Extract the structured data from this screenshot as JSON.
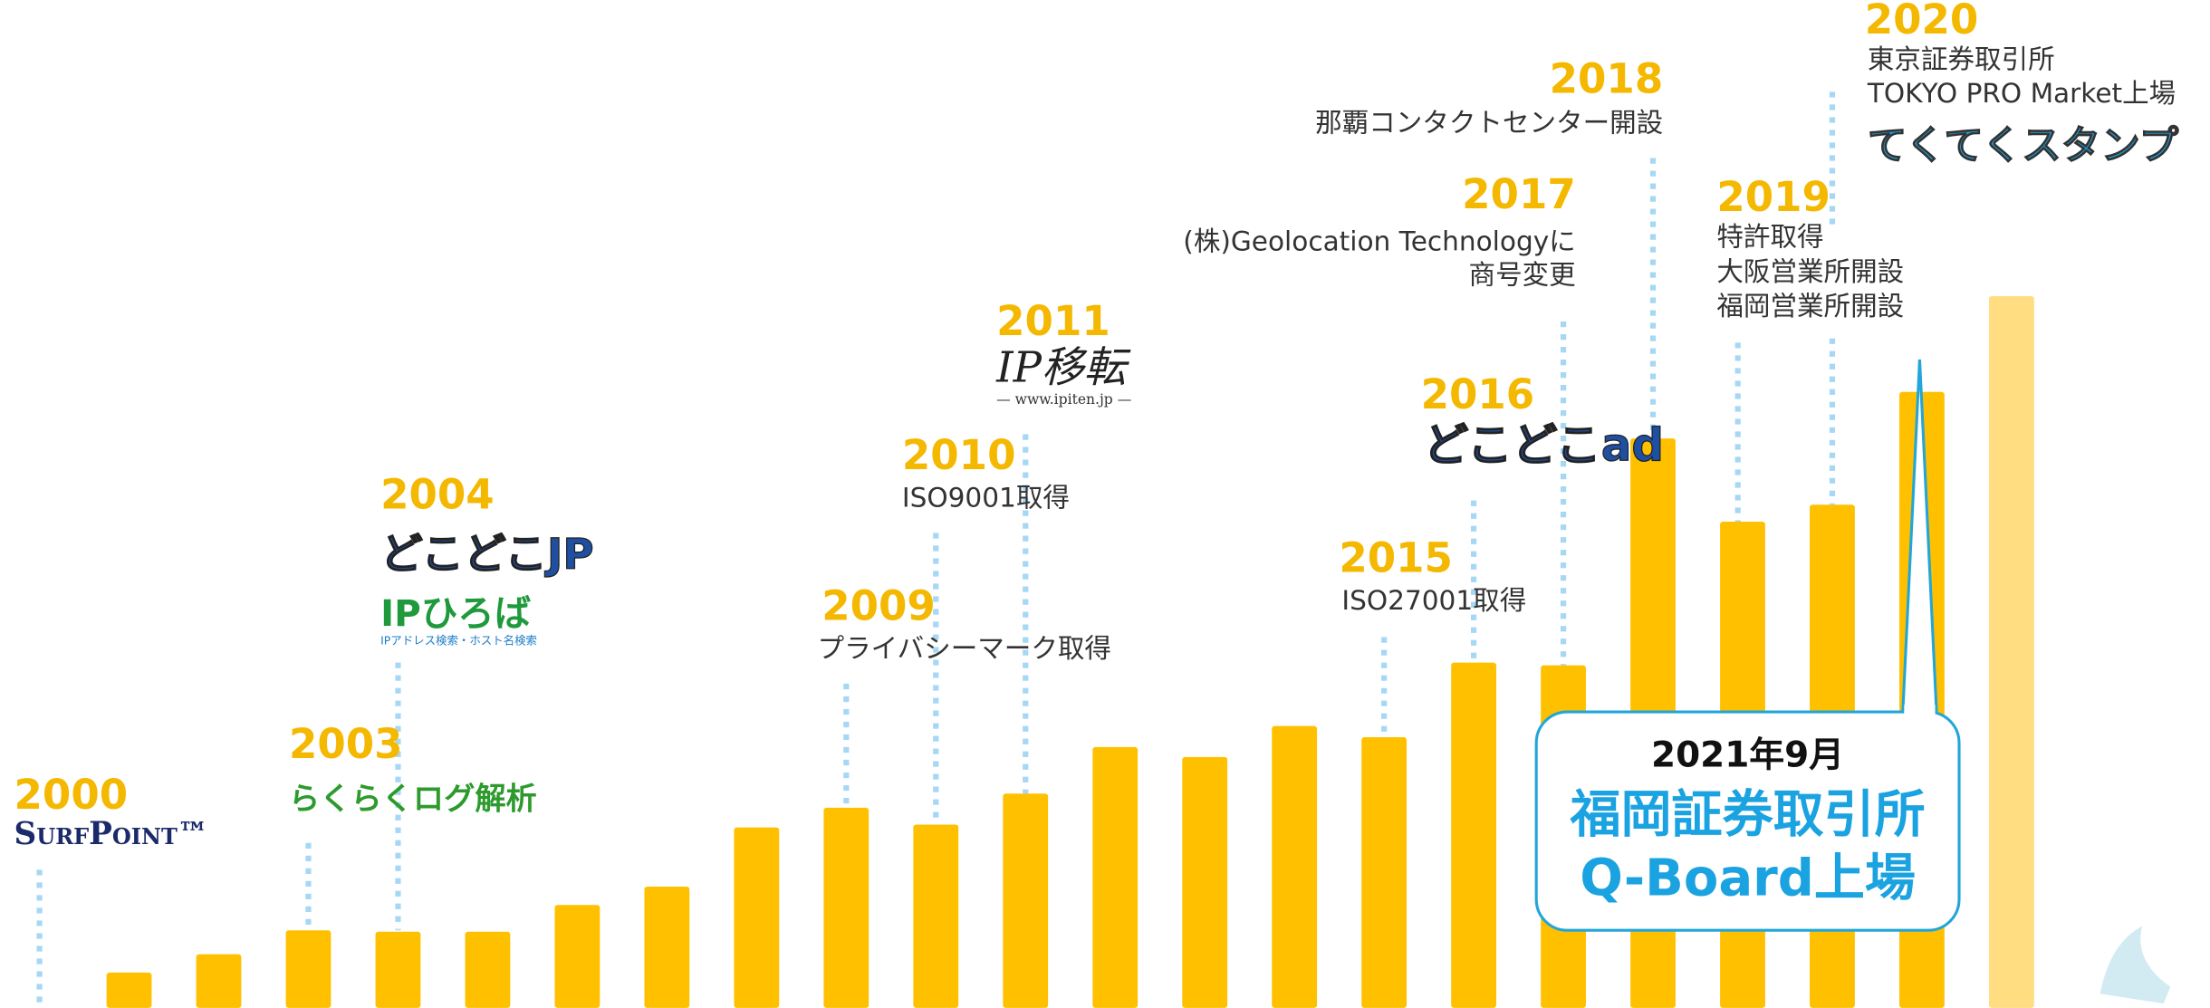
{
  "chart_data": {
    "type": "bar",
    "categories": [
      "2000",
      null,
      null,
      "2003",
      "2004",
      null,
      null,
      null,
      null,
      "2009",
      "2010",
      "2011",
      null,
      null,
      null,
      "2015",
      "2016",
      "2017",
      "2018",
      "2019",
      "2020",
      null,
      null
    ],
    "values": [
      null,
      25,
      38,
      55,
      54,
      54,
      73,
      86,
      128,
      142,
      130,
      152,
      185,
      178,
      200,
      192,
      245,
      243,
      404,
      345,
      357,
      437,
      505
    ],
    "colors": [
      null,
      "#FFC000",
      "#FFC000",
      "#FFC000",
      "#FFC000",
      "#FFC000",
      "#FFC000",
      "#FFC000",
      "#FFC000",
      "#FFC000",
      "#FFC000",
      "#FFC000",
      "#FFC000",
      "#FFC000",
      "#FFC000",
      "#FFC000",
      "#FFC000",
      "#FFC000",
      "#FFC000",
      "#FFC000",
      "#FFC000",
      "#FFC000",
      "#FFDD80"
    ],
    "ylim": [
      0,
      520
    ],
    "events": [
      {
        "lines": [],
        "logos": [
          "SurfPoint™"
        ]
      },
      null,
      null,
      {
        "lines": [],
        "logos": [
          "らくらくログ解析"
        ]
      },
      {
        "lines": [],
        "logos": [
          "どこどこJP",
          "IPひろば",
          "IPアドレス検索・ホスト名検索"
        ]
      },
      null,
      null,
      null,
      null,
      {
        "lines": [
          "プライバシーマーク取得"
        ],
        "logos": []
      },
      {
        "lines": [
          "ISO9001取得"
        ],
        "logos": []
      },
      {
        "lines": [],
        "logos": [
          "IP移転",
          "— www.ipiten.jp —"
        ]
      },
      null,
      null,
      null,
      {
        "lines": [
          "ISO27001取得"
        ],
        "logos": []
      },
      {
        "lines": [],
        "logos": [
          "どこどこad"
        ]
      },
      {
        "lines": [
          "(株)Geolocation Technologyに",
          "商号変更"
        ],
        "logos": []
      },
      {
        "lines": [
          "那覇コンタクトセンター開設"
        ],
        "logos": []
      },
      {
        "lines": [
          "特許取得",
          "大阪営業所開設",
          "福岡営業所開設"
        ],
        "logos": []
      },
      {
        "lines": [
          "東京証券取引所",
          "TOKYO PRO Market上場"
        ],
        "logos": [
          "てくてくスタンプ"
        ]
      },
      null,
      null
    ],
    "callout": {
      "date": "2021年9月",
      "lines": [
        "福岡証券取引所",
        "Q-Board上場"
      ]
    }
  }
}
